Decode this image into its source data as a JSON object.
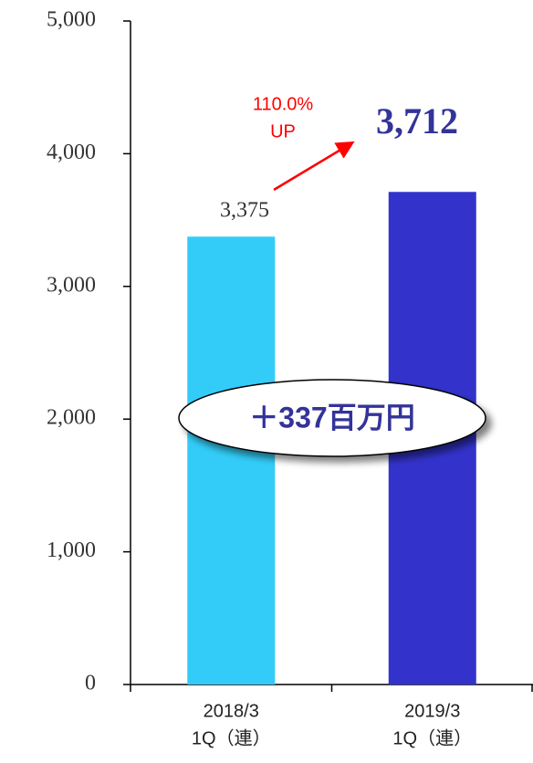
{
  "chart_data": {
    "type": "bar",
    "categories": [
      [
        "2018/3",
        "1Q（連）"
      ],
      [
        "2019/3",
        "1Q（連）"
      ]
    ],
    "values": [
      3375,
      3712
    ],
    "value_labels": [
      "3,375",
      "3,712"
    ],
    "colors": [
      "#33ccf8",
      "#3333cc"
    ],
    "ylim": [
      0,
      5000
    ],
    "yticks": [
      0,
      {
        "value": 1000,
        "label": "1,000"
      },
      {
        "value": 2000,
        "label": "2,000"
      },
      {
        "value": 3000,
        "label": "3,000"
      },
      {
        "value": 4000,
        "label": "4,000"
      },
      {
        "value": 5000,
        "label": "5,000"
      }
    ],
    "annotations": [
      "110.0%",
      "UP",
      "＋337百万円"
    ]
  }
}
